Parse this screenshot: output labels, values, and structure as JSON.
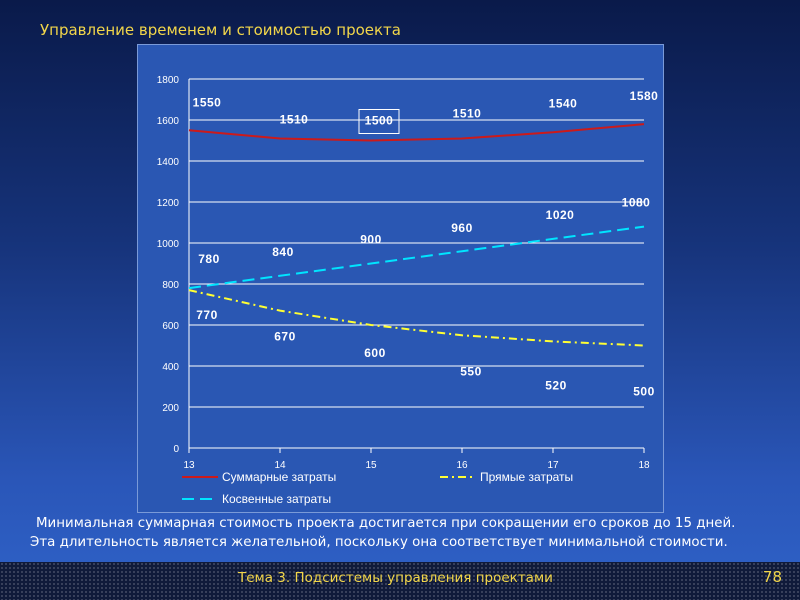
{
  "slide": {
    "title": "Управление временем и стоимостью проекта",
    "caption_line1": "Минимальная суммарная стоимость проекта достигается при сокращении его сроков до 15 дней.",
    "caption_line2": "Эта длительность является желательной, поскольку она соответствует минимальной стоимости.",
    "footer": "Тема 3. Подсистемы управления проектами",
    "page_number": "78"
  },
  "chart_data": {
    "type": "line",
    "x": [
      13,
      14,
      15,
      16,
      17,
      18
    ],
    "ylim": [
      0,
      1800
    ],
    "yticks": [
      0,
      200,
      400,
      600,
      800,
      1000,
      1200,
      1400,
      1600,
      1800
    ],
    "grid": true,
    "legend_position": "bottom",
    "series": [
      {
        "name": "Суммарные затраты",
        "values": [
          1550,
          1510,
          1500,
          1510,
          1540,
          1580
        ],
        "color": "#cc1a1a",
        "style": "solid"
      },
      {
        "name": "Прямые затраты",
        "values": [
          770,
          670,
          600,
          550,
          520,
          500
        ],
        "color": "#ffff33",
        "style": "dash-dot"
      },
      {
        "name": "Косвенные затраты",
        "values": [
          780,
          840,
          900,
          960,
          1020,
          1080
        ],
        "color": "#00e5ff",
        "style": "dash"
      }
    ],
    "highlighted_point": {
      "series": "Суммарные затраты",
      "x": 15
    }
  }
}
